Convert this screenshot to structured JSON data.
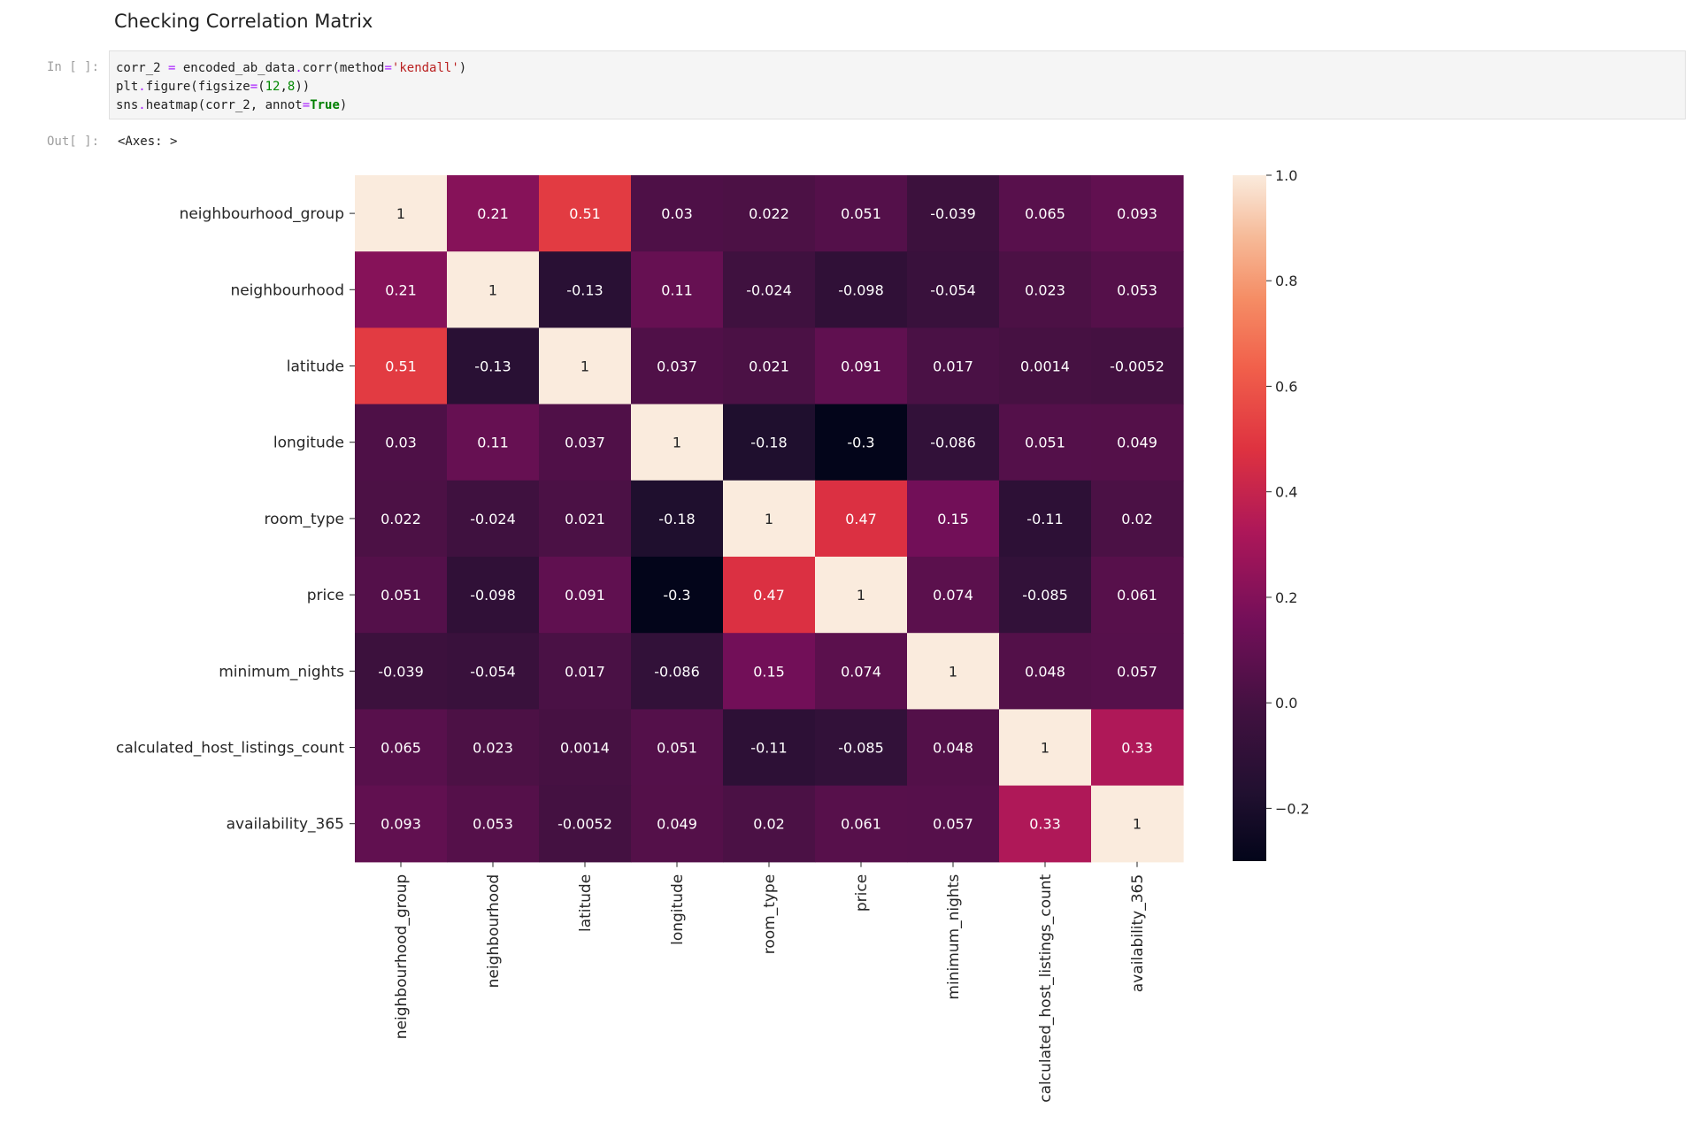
{
  "markdown": {
    "heading": "Checking Correlation Matrix"
  },
  "code_cell": {
    "prompt": "In [ ]:",
    "lines": [
      "corr_2 = encoded_ab_data.corr(method='kendall')",
      "plt.figure(figsize=(12,8))",
      "sns.heatmap(corr_2, annot=True)"
    ]
  },
  "output_cell": {
    "prompt": "Out[ ]:",
    "text": "<Axes: >"
  },
  "chart_data": {
    "type": "heatmap",
    "x_categories": [
      "neighbourhood_group",
      "neighbourhood",
      "latitude",
      "longitude",
      "room_type",
      "price",
      "minimum_nights",
      "calculated_host_listings_count",
      "availability_365"
    ],
    "y_categories": [
      "neighbourhood_group",
      "neighbourhood",
      "latitude",
      "longitude",
      "room_type",
      "price",
      "minimum_nights",
      "calculated_host_listings_count",
      "availability_365"
    ],
    "values": [
      [
        1,
        0.21,
        0.51,
        0.03,
        0.022,
        0.051,
        -0.039,
        0.065,
        0.093
      ],
      [
        0.21,
        1,
        -0.13,
        0.11,
        -0.024,
        -0.098,
        -0.054,
        0.023,
        0.053
      ],
      [
        0.51,
        -0.13,
        1,
        0.037,
        0.021,
        0.091,
        0.017,
        0.0014,
        -0.0052
      ],
      [
        0.03,
        0.11,
        0.037,
        1,
        -0.18,
        -0.3,
        -0.086,
        0.051,
        0.049
      ],
      [
        0.022,
        -0.024,
        0.021,
        -0.18,
        1,
        0.47,
        0.15,
        -0.11,
        0.02
      ],
      [
        0.051,
        -0.098,
        0.091,
        -0.3,
        0.47,
        1,
        0.074,
        -0.085,
        0.061
      ],
      [
        -0.039,
        -0.054,
        0.017,
        -0.086,
        0.15,
        0.074,
        1,
        0.048,
        0.057
      ],
      [
        0.065,
        0.023,
        0.0014,
        0.051,
        -0.11,
        -0.085,
        0.048,
        1,
        0.33
      ],
      [
        0.093,
        0.053,
        -0.0052,
        0.049,
        0.02,
        0.061,
        0.057,
        0.33,
        1
      ]
    ],
    "annotations": [
      [
        "1",
        "0.21",
        "0.51",
        "0.03",
        "0.022",
        "0.051",
        "-0.039",
        "0.065",
        "0.093"
      ],
      [
        "0.21",
        "1",
        "-0.13",
        "0.11",
        "-0.024",
        "-0.098",
        "-0.054",
        "0.023",
        "0.053"
      ],
      [
        "0.51",
        "-0.13",
        "1",
        "0.037",
        "0.021",
        "0.091",
        "0.017",
        "0.0014",
        "-0.0052"
      ],
      [
        "0.03",
        "0.11",
        "0.037",
        "1",
        "-0.18",
        "-0.3",
        "-0.086",
        "0.051",
        "0.049"
      ],
      [
        "0.022",
        "-0.024",
        "0.021",
        "-0.18",
        "1",
        "0.47",
        "0.15",
        "-0.11",
        "0.02"
      ],
      [
        "0.051",
        "-0.098",
        "0.091",
        "-0.3",
        "0.47",
        "1",
        "0.074",
        "-0.085",
        "0.061"
      ],
      [
        "-0.039",
        "-0.054",
        "0.017",
        "-0.086",
        "0.15",
        "0.074",
        "1",
        "0.048",
        "0.057"
      ],
      [
        "0.065",
        "0.023",
        "0.0014",
        "0.051",
        "-0.11",
        "-0.085",
        "0.048",
        "1",
        "0.33"
      ],
      [
        "0.093",
        "0.053",
        "-0.0052",
        "0.049",
        "0.02",
        "0.061",
        "0.057",
        "0.33",
        "1"
      ]
    ],
    "colormap": "rocket",
    "vmin": -0.3,
    "vmax": 1.0,
    "colorbar_ticks": [
      1.0,
      0.8,
      0.6,
      0.4,
      0.2,
      0.0,
      -0.2
    ],
    "colorbar_tick_labels": [
      "1.0",
      "0.8",
      "0.6",
      "0.4",
      "0.2",
      "0.0",
      "−0.2"
    ]
  }
}
